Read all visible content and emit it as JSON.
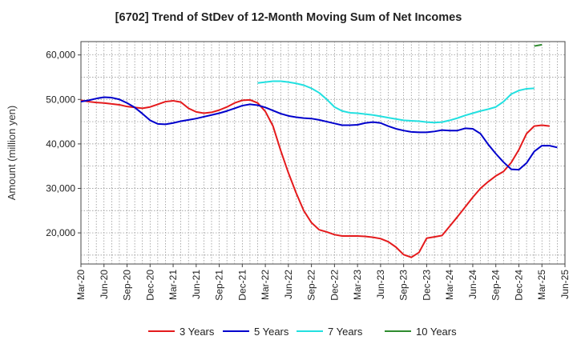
{
  "chart_data": {
    "type": "line",
    "title": "[6702]  Trend of StDev of 12-Month Moving Sum of Net Incomes",
    "xlabel": "",
    "ylabel": "Amount (million yen)",
    "ylim": [
      13000,
      63000
    ],
    "yticks": [
      20000,
      30000,
      40000,
      50000,
      60000
    ],
    "ytick_labels": [
      "20,000",
      "30,000",
      "40,000",
      "50,000",
      "60,000"
    ],
    "xtick_labels": [
      "Mar-20",
      "Jun-20",
      "Sep-20",
      "Dec-20",
      "Mar-21",
      "Jun-21",
      "Sep-21",
      "Dec-21",
      "Mar-22",
      "Jun-22",
      "Sep-22",
      "Dec-22",
      "Mar-23",
      "Jun-23",
      "Sep-23",
      "Dec-23",
      "Mar-24",
      "Jun-24",
      "Sep-24",
      "Dec-24",
      "Mar-25",
      "Jun-25"
    ],
    "grid": true,
    "legend_position": "bottom",
    "colors": {
      "s3": "#e41a1c",
      "s5": "#0000cc",
      "s7": "#22e0e0",
      "s10": "#2e8b2e"
    },
    "series": [
      {
        "name": "3 Years",
        "start": "Mar-20",
        "values": [
          49800,
          49500,
          49300,
          49200,
          49000,
          48800,
          48400,
          48200,
          48000,
          48300,
          48900,
          49500,
          49700,
          49400,
          48000,
          47200,
          46900,
          47100,
          47600,
          48300,
          49200,
          49800,
          49900,
          49200,
          47300,
          44000,
          38500,
          33500,
          29000,
          25000,
          22300,
          20700,
          20200,
          19600,
          19300,
          19300,
          19300,
          19200,
          19000,
          18700,
          18000,
          16800,
          15100,
          14500,
          15600,
          18800,
          19100,
          19400,
          21500,
          23600,
          25800,
          28000,
          30000,
          31500,
          32800,
          33800,
          35800,
          38700,
          42300,
          44000,
          44200,
          44000
        ]
      },
      {
        "name": "5 Years",
        "start": "Mar-20",
        "values": [
          49500,
          49800,
          50200,
          50500,
          50400,
          50000,
          49200,
          48200,
          46800,
          45300,
          44500,
          44400,
          44700,
          45100,
          45400,
          45700,
          46100,
          46500,
          46900,
          47400,
          48000,
          48600,
          48900,
          48700,
          48200,
          47500,
          46800,
          46300,
          46000,
          45800,
          45700,
          45400,
          45000,
          44600,
          44200,
          44200,
          44300,
          44700,
          44900,
          44700,
          44000,
          43400,
          43000,
          42700,
          42600,
          42600,
          42800,
          43100,
          43000,
          43000,
          43500,
          43400,
          42300,
          39900,
          37800,
          35900,
          34300,
          34200,
          35700,
          38300,
          39600,
          39600,
          39200
        ]
      },
      {
        "name": "7 Years",
        "start": "Feb-22",
        "values": [
          53700,
          53900,
          54100,
          54100,
          53900,
          53600,
          53200,
          52500,
          51500,
          50000,
          48300,
          47400,
          47000,
          46900,
          46700,
          46500,
          46200,
          45900,
          45600,
          45300,
          45200,
          45100,
          44900,
          44800,
          44900,
          45300,
          45800,
          46400,
          46900,
          47400,
          47800,
          48300,
          49500,
          51200,
          52000,
          52400,
          52500
        ]
      },
      {
        "name": "10 Years",
        "start": "Feb-25",
        "values": [
          62000,
          62300
        ]
      }
    ]
  }
}
